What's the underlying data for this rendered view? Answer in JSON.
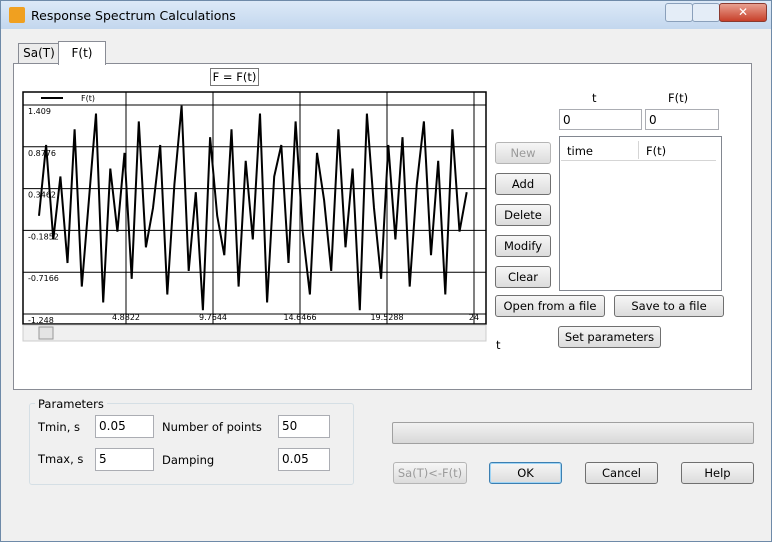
{
  "window": {
    "title": "Response Spectrum Calculations"
  },
  "tabs": [
    "Sa(T)",
    "F(t)"
  ],
  "chart_data": {
    "type": "line",
    "title": "F = F(t)",
    "xlabel": "t",
    "x": [
      0,
      0.4,
      0.8,
      1.2,
      1.6,
      2,
      2.4,
      2.8,
      3.2,
      3.6,
      4,
      4.4,
      4.8,
      5.2,
      5.6,
      6,
      6.4,
      6.8,
      7.2,
      7.6,
      8,
      8.4,
      8.8,
      9.2,
      9.6,
      10,
      10.4,
      10.8,
      11.2,
      11.6,
      12,
      12.4,
      12.8,
      13.2,
      13.6,
      14,
      14.4,
      14.8,
      15.2,
      15.6,
      16,
      16.4,
      16.8,
      17.2,
      17.6,
      18,
      18.4,
      18.8,
      19.2,
      19.6,
      20,
      20.4,
      20.8,
      21.2,
      21.6,
      22,
      22.4,
      22.8,
      23.2,
      23.6,
      24
    ],
    "series": [
      {
        "name": "F(t)",
        "color": "#000000",
        "values": [
          0.0,
          0.9,
          -0.3,
          0.5,
          -0.6,
          1.1,
          -0.9,
          0.2,
          1.3,
          -1.1,
          0.6,
          -0.2,
          0.8,
          -0.8,
          1.2,
          -0.4,
          0.1,
          0.9,
          -1.0,
          0.4,
          1.4,
          -0.7,
          0.3,
          -1.2,
          1.0,
          0.0,
          -0.5,
          1.1,
          -0.9,
          0.7,
          -0.3,
          1.3,
          -1.1,
          0.5,
          0.9,
          -0.6,
          1.2,
          -0.2,
          -1.0,
          0.8,
          0.2,
          -0.7,
          1.1,
          -0.4,
          0.6,
          -1.2,
          1.3,
          0.1,
          -0.8,
          0.9,
          -0.3,
          1.0,
          -0.9,
          0.4,
          1.2,
          -0.5,
          0.7,
          -1.0,
          1.1,
          -0.2,
          0.3
        ]
      }
    ],
    "xlim": [
      0,
      24.411
    ],
    "xticks": [
      4.8822,
      9.7644,
      14.6466,
      19.5288,
      {
        "value": 24.411,
        "label": "24"
      }
    ],
    "ylim": [
      -1.248,
      1.409
    ],
    "yticks": [
      1.409,
      0.8776,
      0.3462,
      -0.1852,
      -0.7166,
      -1.248
    ],
    "grid": true
  },
  "entry": {
    "t_label": "t",
    "f_label": "F(t)",
    "t_value": 0,
    "f_value": 0
  },
  "table": {
    "columns": [
      "time",
      "F(t)"
    ]
  },
  "buttons": {
    "new": "New",
    "add": "Add",
    "delete": "Delete",
    "modify": "Modify",
    "clear": "Clear",
    "open": "Open from a file",
    "save": "Save to a file",
    "set_parameters": "Set parameters",
    "convert": "Sa(T)<-F(t)",
    "ok": "OK",
    "cancel": "Cancel",
    "help": "Help"
  },
  "parameters": {
    "title": "Parameters",
    "tmin_label": "Tmin, s",
    "tmin": 0.05,
    "tmax_label": "Tmax, s",
    "tmax": 5,
    "points_label": "Number of points",
    "points": 50,
    "damping_label": "Damping",
    "damping": 0.05
  }
}
